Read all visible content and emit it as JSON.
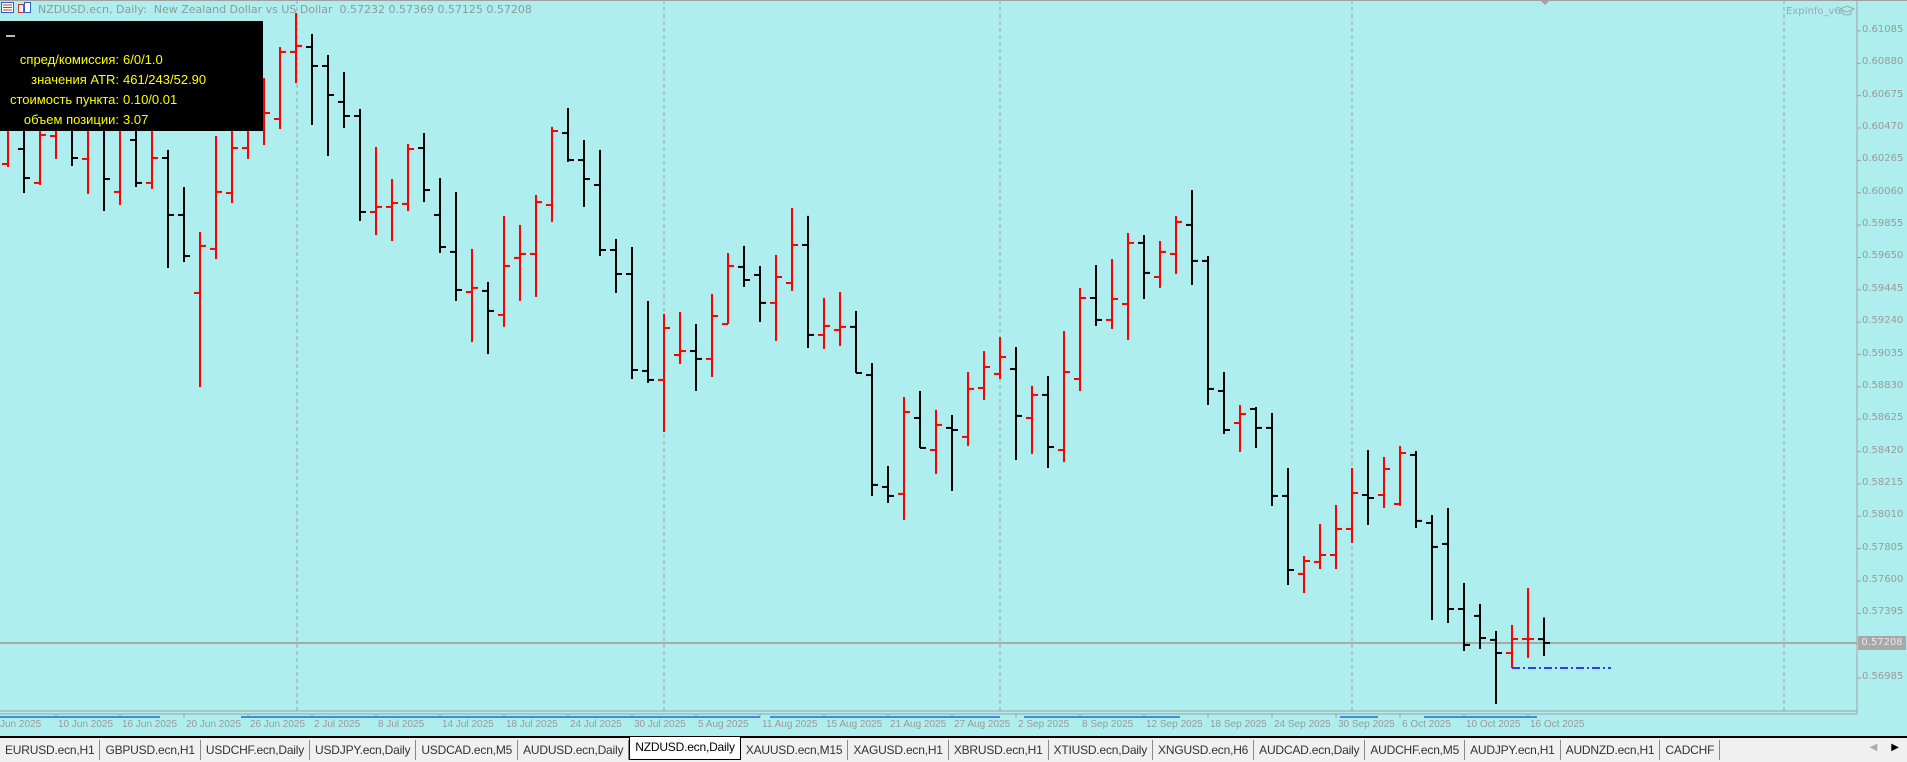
{
  "header": {
    "symbol": "NZDUSD.ecn, Daily:",
    "description": "New Zealand Dollar vs US Dollar",
    "ohlc": "0.57232 0.57369 0.57125 0.57208"
  },
  "info_panel": {
    "rows": [
      {
        "label": "спред/комиссия:",
        "value": "6/0/1.0"
      },
      {
        "label": "значения ATR:",
        "value": "461/243/52.90"
      },
      {
        "label": "стоимость пункта:",
        "value": "0.10/0.01"
      },
      {
        "label": "объем позиции:",
        "value": "3.07"
      }
    ]
  },
  "indicator_label": "ExpInfo_v6",
  "current_price": "0.57208",
  "colors": {
    "background": "#afeeee",
    "bull": "#ff0000",
    "bear": "#000000",
    "grid": "#a0a0a0",
    "level_line": "#0000ff",
    "info_text": "#ffff00"
  },
  "chart_data": {
    "type": "ohlc",
    "symbol": "NZDUSD.ecn",
    "timeframe": "Daily",
    "ylim": [
      0.5681,
      0.6127
    ],
    "y_ticks": [
      "0.61085",
      "0.60880",
      "0.60675",
      "0.60470",
      "0.60265",
      "0.60060",
      "0.59855",
      "0.59650",
      "0.59445",
      "0.59240",
      "0.59035",
      "0.58830",
      "0.58625",
      "0.58420",
      "0.58215",
      "0.58010",
      "0.57805",
      "0.57600",
      "0.57395",
      "0.56985"
    ],
    "x_ticks": [
      "Jun 2025",
      "10 Jun 2025",
      "16 Jun 2025",
      "20 Jun 2025",
      "26 Jun 2025",
      "2 Jul 2025",
      "8 Jul 2025",
      "14 Jul 2025",
      "18 Jul 2025",
      "24 Jul 2025",
      "30 Jul 2025",
      "5 Aug 2025",
      "11 Aug 2025",
      "15 Aug 2025",
      "21 Aug 2025",
      "27 Aug 2025",
      "2 Sep 2025",
      "8 Sep 2025",
      "12 Sep 2025",
      "18 Sep 2025",
      "24 Sep 2025",
      "30 Sep 2025",
      "6 Oct 2025",
      "10 Oct 2025",
      "16 Oct 2025"
    ],
    "bar_fields": [
      "open",
      "high",
      "low",
      "close"
    ],
    "bars": [
      [
        0.60242,
        0.60521,
        0.60223,
        0.6047
      ],
      [
        0.60337,
        0.60489,
        0.60058,
        0.60153
      ],
      [
        0.60122,
        0.60489,
        0.60109,
        0.60426
      ],
      [
        0.60419,
        0.60616,
        0.60274,
        0.60553
      ],
      [
        0.60521,
        0.60584,
        0.60229,
        0.6028
      ],
      [
        0.60274,
        0.60648,
        0.60052,
        0.60534
      ],
      [
        0.60489,
        0.60553,
        0.59944,
        0.60147
      ],
      [
        0.60065,
        0.60521,
        0.59982,
        0.60457
      ],
      [
        0.60394,
        0.60489,
        0.60096,
        0.60122
      ],
      [
        0.60122,
        0.60489,
        0.60084,
        0.6028
      ],
      [
        0.6028,
        0.60331,
        0.59583,
        0.59919
      ],
      [
        0.59919,
        0.60096,
        0.59621,
        0.59659
      ],
      [
        0.59425,
        0.59811,
        0.58829,
        0.59723
      ],
      [
        0.59704,
        0.60419,
        0.5964,
        0.60065
      ],
      [
        0.60058,
        0.60521,
        0.59995,
        0.60343
      ],
      [
        0.60343,
        0.60679,
        0.60274,
        0.60553
      ],
      [
        0.60457,
        0.60787,
        0.60362,
        0.60565
      ],
      [
        0.60527,
        0.60983,
        0.60464,
        0.60952
      ],
      [
        0.60952,
        0.61199,
        0.60755,
        0.6099
      ],
      [
        0.60983,
        0.61066,
        0.60489,
        0.60863
      ],
      [
        0.60863,
        0.60933,
        0.60293,
        0.60679
      ],
      [
        0.60635,
        0.60825,
        0.6047,
        0.60546
      ],
      [
        0.60546,
        0.60591,
        0.59881,
        0.59938
      ],
      [
        0.59938,
        0.6035,
        0.59792,
        0.5997
      ],
      [
        0.5997,
        0.60147,
        0.59754,
        0.59995
      ],
      [
        0.59989,
        0.60369,
        0.59944,
        0.60337
      ],
      [
        0.60343,
        0.60438,
        0.60001,
        0.60077
      ],
      [
        0.59919,
        0.60153,
        0.59678,
        0.59716
      ],
      [
        0.59685,
        0.60065,
        0.59374,
        0.59444
      ],
      [
        0.59431,
        0.59704,
        0.59114,
        0.59457
      ],
      [
        0.59438,
        0.59495,
        0.59038,
        0.59311
      ],
      [
        0.59286,
        0.59913,
        0.5921,
        0.59596
      ],
      [
        0.59647,
        0.59856,
        0.59374,
        0.59672
      ],
      [
        0.59672,
        0.60046,
        0.594,
        0.60001
      ],
      [
        0.59982,
        0.60477,
        0.59875,
        0.60451
      ],
      [
        0.60438,
        0.60597,
        0.60255,
        0.60267
      ],
      [
        0.60267,
        0.60394,
        0.5997,
        0.60147
      ],
      [
        0.60109,
        0.60331,
        0.59659,
        0.59697
      ],
      [
        0.59697,
        0.59767,
        0.59425,
        0.59545
      ],
      [
        0.59545,
        0.59716,
        0.5888,
        0.58937
      ],
      [
        0.58931,
        0.59374,
        0.58855,
        0.58874
      ],
      [
        0.58874,
        0.59292,
        0.58544,
        0.59203
      ],
      [
        0.59032,
        0.59305,
        0.58975,
        0.59057
      ],
      [
        0.59057,
        0.59228,
        0.58804,
        0.59007
      ],
      [
        0.59007,
        0.59419,
        0.58893,
        0.59279
      ],
      [
        0.59228,
        0.59678,
        0.59228,
        0.59596
      ],
      [
        0.5959,
        0.59723,
        0.59463,
        0.59507
      ],
      [
        0.59539,
        0.59596,
        0.59241,
        0.59362
      ],
      [
        0.59362,
        0.59666,
        0.59121,
        0.59526
      ],
      [
        0.59488,
        0.59963,
        0.59438,
        0.59729
      ],
      [
        0.59729,
        0.59913,
        0.59076,
        0.59159
      ],
      [
        0.59159,
        0.59393,
        0.5907,
        0.59216
      ],
      [
        0.5919,
        0.59431,
        0.59089,
        0.5921
      ],
      [
        0.5921,
        0.59311,
        0.58918,
        0.58918
      ],
      [
        0.58905,
        0.58981,
        0.58139,
        0.58209
      ],
      [
        0.58196,
        0.58329,
        0.58095,
        0.58139
      ],
      [
        0.58152,
        0.58766,
        0.57987,
        0.58671
      ],
      [
        0.58633,
        0.58804,
        0.58443,
        0.58443
      ],
      [
        0.5843,
        0.58684,
        0.58278,
        0.58589
      ],
      [
        0.5857,
        0.58652,
        0.58171,
        0.58557
      ],
      [
        0.58513,
        0.58924,
        0.58456,
        0.58817
      ],
      [
        0.58823,
        0.59057,
        0.58747,
        0.58956
      ],
      [
        0.58912,
        0.59146,
        0.5888,
        0.59019
      ],
      [
        0.58943,
        0.59083,
        0.58367,
        0.58646
      ],
      [
        0.58633,
        0.58836,
        0.58405,
        0.58779
      ],
      [
        0.58779,
        0.58899,
        0.58316,
        0.58449
      ],
      [
        0.5843,
        0.59184,
        0.58354,
        0.58924
      ],
      [
        0.5888,
        0.59457,
        0.58804,
        0.59393
      ],
      [
        0.59393,
        0.59602,
        0.59216,
        0.59254
      ],
      [
        0.59254,
        0.5964,
        0.59197,
        0.59387
      ],
      [
        0.59355,
        0.59805,
        0.59127,
        0.59742
      ],
      [
        0.59742,
        0.59792,
        0.59387,
        0.59552
      ],
      [
        0.59526,
        0.59754,
        0.59457,
        0.59685
      ],
      [
        0.59672,
        0.59913,
        0.59545,
        0.59875
      ],
      [
        0.59856,
        0.60077,
        0.59476,
        0.59628
      ],
      [
        0.59628,
        0.59659,
        0.58715,
        0.58817
      ],
      [
        0.58804,
        0.58924,
        0.58532,
        0.58557
      ],
      [
        0.58601,
        0.58715,
        0.58418,
        0.58658
      ],
      [
        0.5869,
        0.58703,
        0.58443,
        0.5857
      ],
      [
        0.5857,
        0.58665,
        0.58076,
        0.58139
      ],
      [
        0.58139,
        0.58316,
        0.57575,
        0.5767
      ],
      [
        0.57645,
        0.57759,
        0.57524,
        0.57727
      ],
      [
        0.57721,
        0.57962,
        0.57676,
        0.57765
      ],
      [
        0.57765,
        0.58082,
        0.57676,
        0.5793
      ],
      [
        0.5793,
        0.58316,
        0.57841,
        0.58158
      ],
      [
        0.58145,
        0.5843,
        0.57955,
        0.58126
      ],
      [
        0.58145,
        0.58386,
        0.58063,
        0.5831
      ],
      [
        0.58088,
        0.58456,
        0.58076,
        0.58411
      ],
      [
        0.58399,
        0.58424,
        0.57936,
        0.57981
      ],
      [
        0.57968,
        0.58018,
        0.57353,
        0.57816
      ],
      [
        0.57835,
        0.58063,
        0.57334,
        0.57423
      ],
      [
        0.57423,
        0.57588,
        0.57157,
        0.57195
      ],
      [
        0.57379,
        0.57455,
        0.5717,
        0.57239
      ],
      [
        0.57227,
        0.57284,
        0.56821,
        0.57144
      ],
      [
        0.57144,
        0.57322,
        0.57049,
        0.57233
      ],
      [
        0.57233,
        0.57556,
        0.57113,
        0.57233
      ],
      [
        0.57232,
        0.57369,
        0.57125,
        0.57208
      ]
    ],
    "bid_line": 0.57208,
    "level_line": {
      "price": 0.57049,
      "style": "dash-dot",
      "color": "#0000ff"
    },
    "grid": false,
    "period_separators": true
  },
  "tabs": [
    {
      "label": "EURUSD.ecn,H1"
    },
    {
      "label": "GBPUSD.ecn,H1"
    },
    {
      "label": "USDCHF.ecn,Daily"
    },
    {
      "label": "USDJPY.ecn,Daily"
    },
    {
      "label": "USDCAD.ecn,M5"
    },
    {
      "label": "AUDUSD.ecn,Daily"
    },
    {
      "label": "NZDUSD.ecn,Daily",
      "active": true
    },
    {
      "label": "XAUUSD.ecn,M15"
    },
    {
      "label": "XAGUSD.ecn,H1"
    },
    {
      "label": "XBRUSD.ecn,H1"
    },
    {
      "label": "XTIUSD.ecn,Daily"
    },
    {
      "label": "XNGUSD.ecn,H6"
    },
    {
      "label": "AUDCAD.ecn,Daily"
    },
    {
      "label": "AUDCHF.ecn,M5"
    },
    {
      "label": "AUDJPY.ecn,H1"
    },
    {
      "label": "AUDNZD.ecn,H1"
    },
    {
      "label": "CADCHF"
    }
  ],
  "tab_scroll": {
    "left_icon": "triangle-left-icon",
    "right_icon": "triangle-right-icon"
  }
}
